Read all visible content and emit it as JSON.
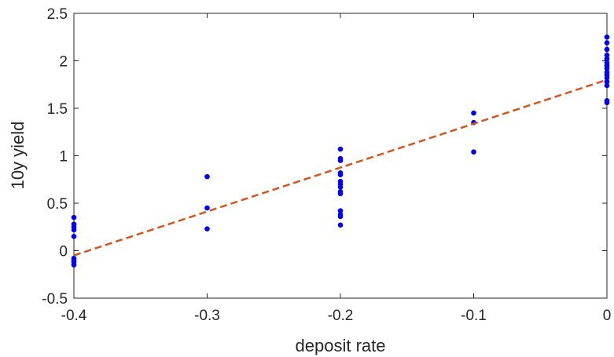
{
  "chart_data": {
    "type": "scatter",
    "xlabel": "deposit rate",
    "ylabel": "10y yield",
    "xlim": [
      -0.4,
      0
    ],
    "xticks": [
      -0.4,
      -0.3,
      -0.2,
      -0.1,
      0
    ],
    "ylim": [
      -0.5,
      2.5
    ],
    "yticks": [
      -0.5,
      0,
      0.5,
      1,
      1.5,
      2,
      2.5
    ],
    "grid": false,
    "box": true,
    "series": [
      {
        "color": "#0000ff",
        "mode": "markers",
        "x": [
          -0.4,
          -0.4,
          -0.4,
          -0.4,
          -0.4,
          -0.4,
          -0.4,
          -0.4,
          -0.4,
          -0.3,
          -0.3,
          -0.3,
          -0.2,
          -0.2,
          -0.2,
          -0.2,
          -0.2,
          -0.2,
          -0.2,
          -0.2,
          -0.2,
          -0.2,
          -0.2,
          -0.2,
          -0.2,
          -0.2,
          -0.1,
          -0.1,
          -0.1,
          0,
          0,
          0,
          0,
          0,
          0,
          0,
          0,
          0,
          0,
          0,
          0,
          0,
          0,
          0
        ],
        "values": [
          0.35,
          0.28,
          0.25,
          0.22,
          0.15,
          -0.08,
          -0.1,
          -0.12,
          -0.15,
          0.78,
          0.45,
          0.23,
          1.07,
          0.97,
          0.95,
          0.82,
          0.8,
          0.73,
          0.7,
          0.67,
          0.62,
          0.6,
          0.42,
          0.38,
          0.36,
          0.27,
          1.45,
          1.35,
          1.04,
          2.25,
          2.19,
          2.12,
          2.06,
          2.02,
          1.98,
          1.95,
          1.92,
          1.88,
          1.85,
          1.82,
          1.78,
          1.74,
          1.58,
          1.56
        ]
      },
      {
        "color": "#d95319",
        "mode": "dashed-line",
        "x": [
          -0.4,
          0
        ],
        "values": [
          -0.05,
          1.8
        ]
      }
    ]
  }
}
